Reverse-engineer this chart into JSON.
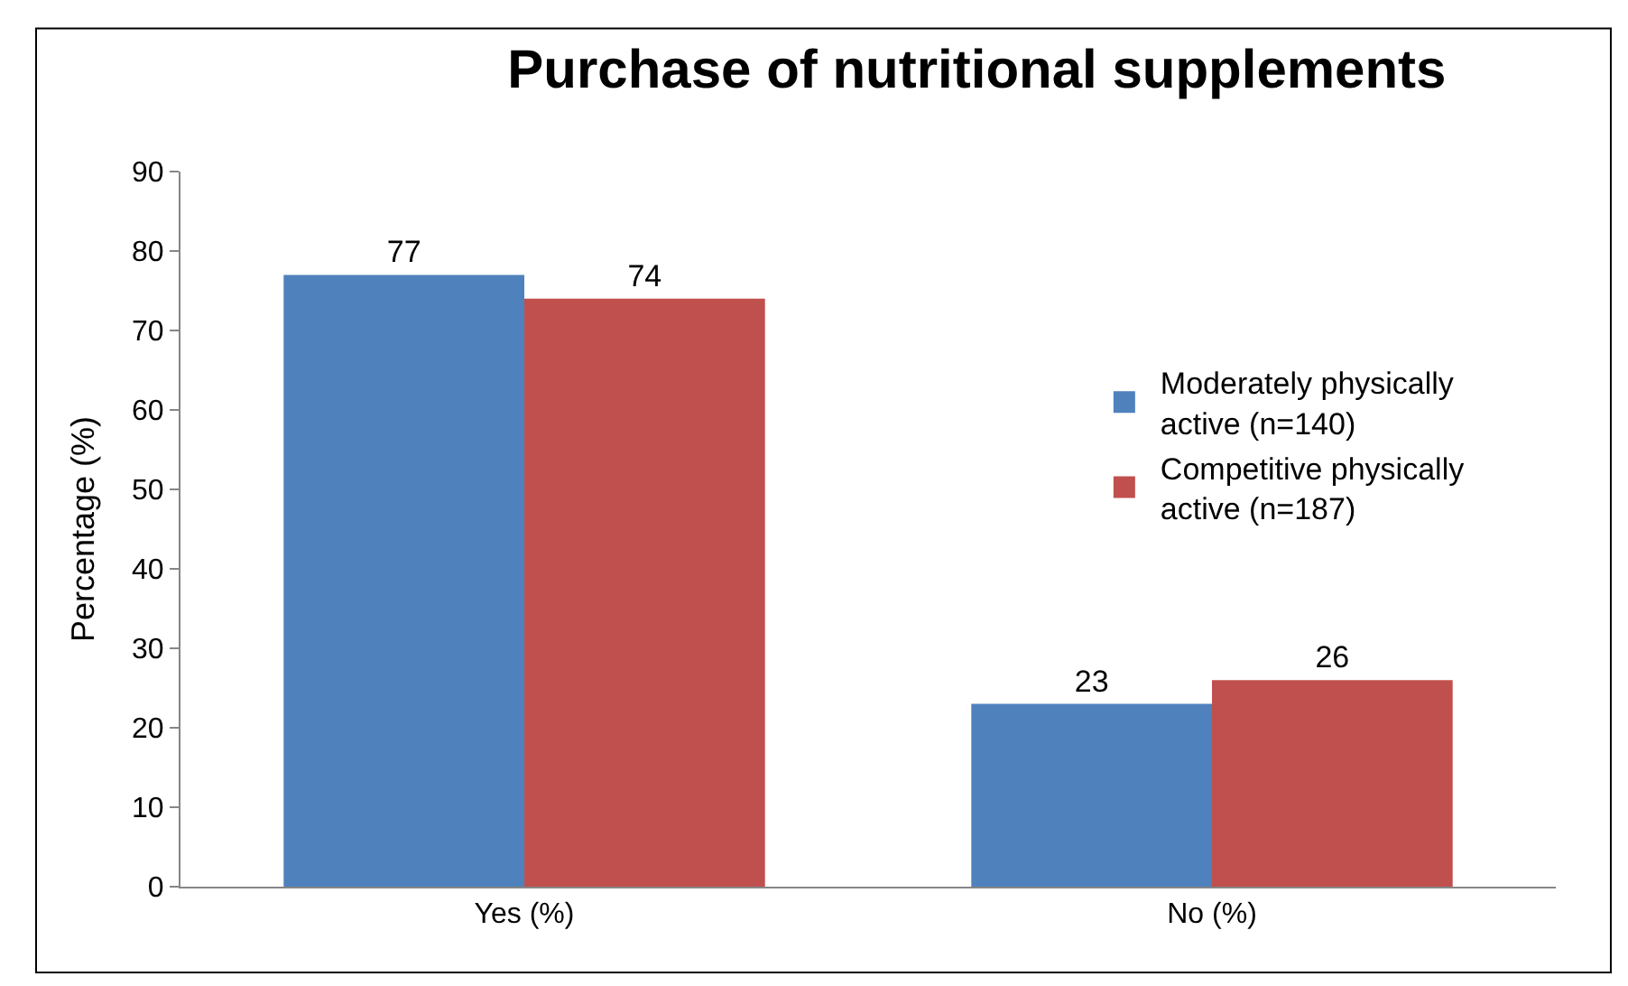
{
  "chart_data": {
    "type": "bar",
    "title": "Purchase of nutritional supplements",
    "ylabel": "Percentage (%)",
    "categories": [
      "Yes (%)",
      "No (%)"
    ],
    "series": [
      {
        "name": "Moderately physically active (n=140)",
        "color": "#4f81bd",
        "values": [
          77,
          23
        ]
      },
      {
        "name": "Competitive physically active (n=187)",
        "color": "#c0504d",
        "values": [
          74,
          26
        ]
      }
    ],
    "ylim": [
      0,
      90
    ],
    "yticks": [
      0,
      10,
      20,
      30,
      40,
      50,
      60,
      70,
      80,
      90
    ],
    "data_labels": true,
    "grid": false,
    "legend": "right"
  }
}
